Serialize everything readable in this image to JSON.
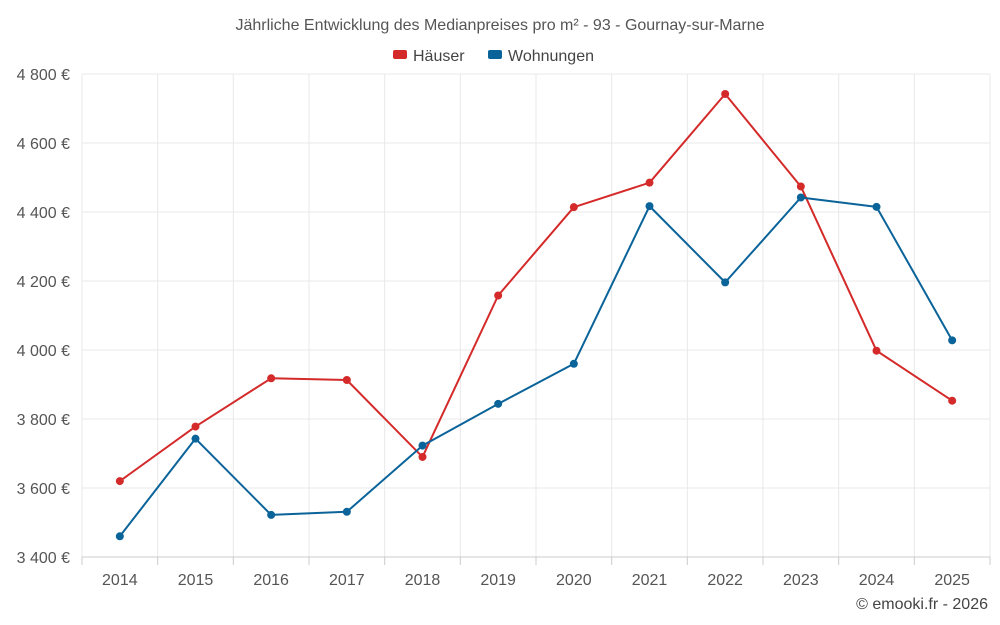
{
  "chart_data": {
    "type": "line",
    "title": "Jährliche Entwicklung des Medianpreises pro m² - 93 - Gournay-sur-Marne",
    "x": [
      "2014",
      "2015",
      "2016",
      "2017",
      "2018",
      "2019",
      "2020",
      "2021",
      "2022",
      "2023",
      "2024",
      "2025"
    ],
    "series": [
      {
        "name": "Häuser",
        "color": "#d42a2a",
        "values": [
          3620,
          3778,
          3918,
          3913,
          3690,
          4158,
          4414,
          4485,
          4742,
          4474,
          3998,
          3853
        ]
      },
      {
        "name": "Wohnungen",
        "color": "#0a6399",
        "values": [
          3460,
          3743,
          3522,
          3531,
          3723,
          3844,
          3960,
          4417,
          4196,
          4442,
          4415,
          4028
        ]
      }
    ],
    "ylim": [
      3400,
      4800
    ],
    "yticks": [
      3400,
      3600,
      3800,
      4000,
      4200,
      4400,
      4600,
      4800
    ],
    "ytick_labels": [
      "3 400 €",
      "3 600 €",
      "3 800 €",
      "4 000 €",
      "4 200 €",
      "4 400 €",
      "4 600 €",
      "4 800 €"
    ],
    "legend_position": "top-center",
    "grid": true
  },
  "credit": "© emooki.fr - 2026"
}
